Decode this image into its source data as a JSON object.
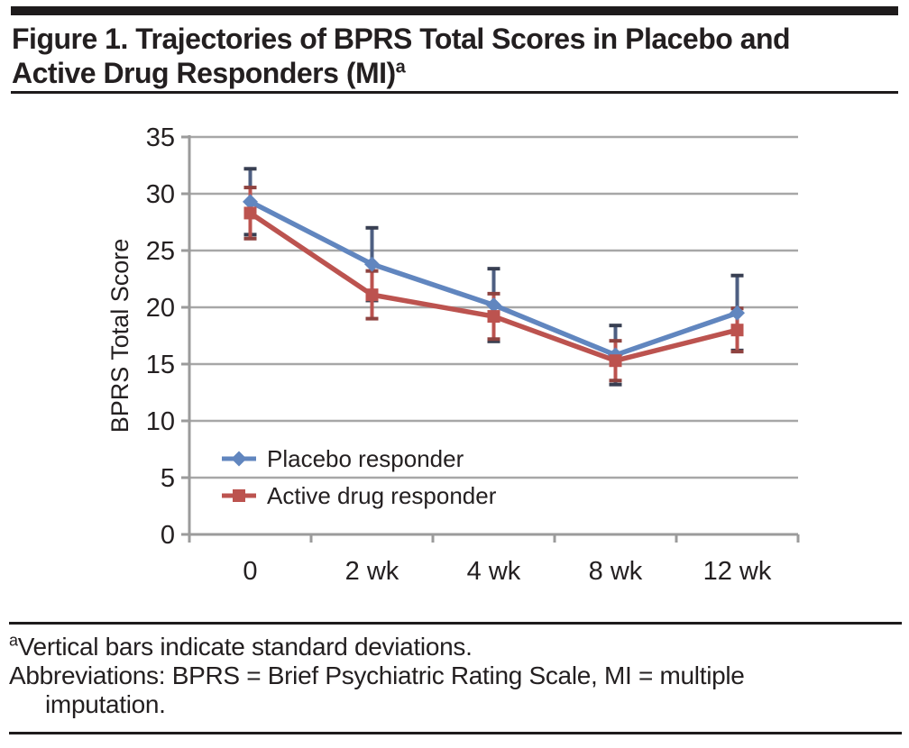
{
  "figure": {
    "title_line1": "Figure 1. Trajectories of BPRS Total Scores in Placebo and",
    "title_line2": "Active Drug Responders (MI)",
    "title_superscript": "a"
  },
  "footnote": {
    "superscript": "a",
    "line1": "Vertical bars indicate standard deviations.",
    "line2": "Abbreviations: BPRS = Brief Psychiatric Rating Scale, MI = multiple",
    "line3": "imputation."
  },
  "chart_data": {
    "type": "line",
    "title": "",
    "xlabel": "",
    "ylabel": "BPRS Total Score",
    "x_categories": [
      "0",
      "2 wk",
      "4 wk",
      "8 wk",
      "12 wk"
    ],
    "y_ticks": [
      35,
      30,
      25,
      20,
      15,
      10,
      5,
      0
    ],
    "ylim": [
      0,
      35
    ],
    "grid": "horizontal",
    "legend_position": "inside-bottom-left",
    "error_bars": "standard deviations",
    "grid_color": "#a7a7a7",
    "axis_color": "#9b9b9b",
    "text_color": "#242021",
    "series": [
      {
        "name": "Placebo responder",
        "marker": "diamond",
        "color": "#6186bf",
        "error_line_color": "#4e5f82",
        "error_cap_color": "#383f52",
        "values": [
          29.3,
          23.8,
          20.2,
          15.8,
          19.5
        ],
        "sd": [
          2.9,
          3.2,
          3.2,
          2.6,
          3.3
        ]
      },
      {
        "name": "Active drug responder",
        "marker": "square",
        "color": "#bc534f",
        "error_line_color": "#bc534f",
        "error_cap_color": "#8f4340",
        "values": [
          28.3,
          21.1,
          19.2,
          15.3,
          18.0
        ],
        "sd": [
          2.25,
          2.1,
          2.0,
          1.75,
          1.9
        ]
      }
    ]
  }
}
